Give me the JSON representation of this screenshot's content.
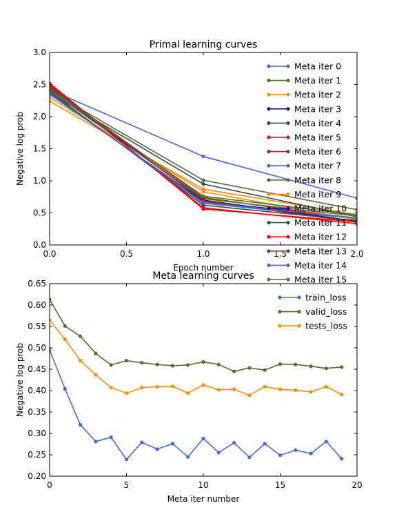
{
  "chart_data": [
    {
      "type": "line",
      "title": "Primal learning curves",
      "xlabel": "Epoch number",
      "ylabel": "Negative log prob",
      "xlim": [
        0.0,
        2.0
      ],
      "ylim": [
        0.0,
        3.0
      ],
      "xticks": [
        "0.0",
        "0.5",
        "1.0",
        "1.5",
        "2.0"
      ],
      "yticks": [
        "0.0",
        "0.5",
        "1.0",
        "1.5",
        "2.0",
        "2.5",
        "3.0"
      ],
      "grid": false,
      "legend": "top-right",
      "x": [
        0,
        1,
        2
      ],
      "series": [
        {
          "name": "Meta iter 0",
          "color": "#4169e1",
          "values": [
            2.42,
            1.38,
            0.73
          ]
        },
        {
          "name": "Meta iter 1",
          "color": "#556b2f",
          "values": [
            2.4,
            1.01,
            0.55
          ]
        },
        {
          "name": "Meta iter 2",
          "color": "#ff8c00",
          "values": [
            2.24,
            0.87,
            0.47
          ]
        },
        {
          "name": "Meta iter 3",
          "color": "#191970",
          "values": [
            2.35,
            0.68,
            0.42
          ]
        },
        {
          "name": "Meta iter 4",
          "color": "#2f4f4f",
          "values": [
            2.37,
            0.95,
            0.44
          ]
        },
        {
          "name": "Meta iter 5",
          "color": "#ff0000",
          "values": [
            2.52,
            0.56,
            0.36
          ]
        },
        {
          "name": "Meta iter 6",
          "color": "#a52a2a",
          "values": [
            2.46,
            0.74,
            0.4
          ]
        },
        {
          "name": "Meta iter 7",
          "color": "#4169e1",
          "values": [
            2.38,
            0.65,
            0.41
          ]
        },
        {
          "name": "Meta iter 8",
          "color": "#556b2f",
          "values": [
            2.41,
            0.72,
            0.45
          ]
        },
        {
          "name": "Meta iter 9",
          "color": "#ff8c00",
          "values": [
            2.3,
            0.83,
            0.39
          ]
        },
        {
          "name": "Meta iter 10",
          "color": "#191970",
          "values": [
            2.44,
            0.7,
            0.37
          ]
        },
        {
          "name": "Meta iter 11",
          "color": "#2f4f4f",
          "values": [
            2.39,
            0.62,
            0.38
          ]
        },
        {
          "name": "Meta iter 12",
          "color": "#ff0000",
          "values": [
            2.5,
            0.58,
            0.33
          ]
        },
        {
          "name": "Meta iter 13",
          "color": "#a52a2a",
          "values": [
            2.48,
            0.69,
            0.35
          ]
        },
        {
          "name": "Meta iter 14",
          "color": "#4169e1",
          "values": [
            2.36,
            0.66,
            0.42
          ]
        },
        {
          "name": "Meta iter 15",
          "color": "#556b2f",
          "values": [
            2.43,
            0.76,
            0.47
          ]
        }
      ]
    },
    {
      "type": "line",
      "title": "Meta learning curves",
      "xlabel": "Meta iter number",
      "ylabel": "Negative log prob",
      "xlim": [
        0,
        20
      ],
      "ylim": [
        0.2,
        0.65
      ],
      "xticks": [
        "0",
        "5",
        "10",
        "15",
        "20"
      ],
      "yticks": [
        "0.20",
        "0.25",
        "0.30",
        "0.35",
        "0.40",
        "0.45",
        "0.50",
        "0.55",
        "0.60",
        "0.65"
      ],
      "grid": false,
      "legend": "top-right",
      "x": [
        0,
        1,
        2,
        3,
        4,
        5,
        6,
        7,
        8,
        9,
        10,
        11,
        12,
        13,
        14,
        15,
        16,
        17,
        18,
        19
      ],
      "series": [
        {
          "name": "train_loss",
          "color": "#4169e1",
          "values": [
            0.495,
            0.404,
            0.32,
            0.281,
            0.291,
            0.239,
            0.279,
            0.263,
            0.276,
            0.245,
            0.288,
            0.255,
            0.278,
            0.244,
            0.276,
            0.249,
            0.261,
            0.253,
            0.281,
            0.241
          ]
        },
        {
          "name": "valid_loss",
          "color": "#556b2f",
          "values": [
            0.613,
            0.551,
            0.527,
            0.487,
            0.46,
            0.47,
            0.465,
            0.461,
            0.458,
            0.46,
            0.467,
            0.461,
            0.445,
            0.453,
            0.448,
            0.462,
            0.461,
            0.457,
            0.452,
            0.455
          ]
        },
        {
          "name": "tests_loss",
          "color": "#ff8c00",
          "values": [
            0.565,
            0.52,
            0.47,
            0.437,
            0.407,
            0.394,
            0.407,
            0.409,
            0.41,
            0.394,
            0.413,
            0.402,
            0.403,
            0.389,
            0.409,
            0.403,
            0.401,
            0.397,
            0.409,
            0.391
          ]
        }
      ]
    }
  ]
}
